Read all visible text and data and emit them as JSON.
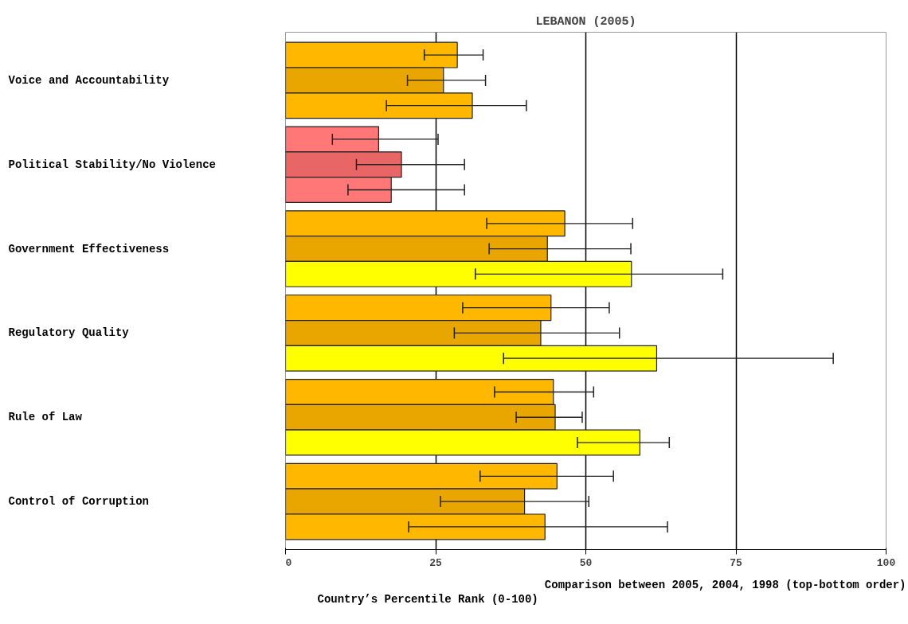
{
  "chart_data": {
    "type": "bar",
    "orientation": "horizontal",
    "title": "LEBANON (2005)",
    "xlabel": "Country’s Percentile Rank (0-100)",
    "annotations": [
      "Comparison between 2005, 2004, 1998 (top-bottom order)"
    ],
    "categories": [
      "Voice and Accountability",
      "Political Stability/No Violence",
      "Government Effectiveness",
      "Regulatory Quality",
      "Rule of Law",
      "Control of Corruption"
    ],
    "series": [
      {
        "colors": [
          "#ffb700",
          "#ff7777",
          "#ffb700",
          "#ffb700",
          "#ffb700",
          "#ffb700"
        ],
        "values": [
          28.6,
          15.5,
          46.5,
          44.2,
          44.6,
          45.2
        ],
        "errors": [
          [
            23.1,
            32.9
          ],
          [
            7.8,
            25.4
          ],
          [
            33.5,
            57.8
          ],
          [
            29.5,
            53.9
          ],
          [
            34.8,
            51.3
          ],
          [
            32.4,
            54.6
          ]
        ]
      },
      {
        "colors": [
          "#eaa600",
          "#e86666",
          "#eaa600",
          "#eaa600",
          "#eaa600",
          "#eaa600"
        ],
        "values": [
          26.3,
          19.3,
          43.6,
          42.5,
          44.9,
          39.8
        ],
        "errors": [
          [
            20.3,
            33.3
          ],
          [
            11.8,
            29.8
          ],
          [
            33.9,
            57.5
          ],
          [
            28.1,
            55.6
          ],
          [
            38.4,
            49.4
          ],
          [
            25.8,
            50.5
          ]
        ]
      },
      {
        "colors": [
          "#ffb700",
          "#ff7777",
          "#ffff00",
          "#ffff00",
          "#ffff00",
          "#ffb700"
        ],
        "values": [
          31.1,
          17.6,
          57.6,
          61.8,
          59.0,
          43.2
        ],
        "errors": [
          [
            16.8,
            40.1
          ],
          [
            10.4,
            29.8
          ],
          [
            31.6,
            72.8
          ],
          [
            36.3,
            91.2
          ],
          [
            48.6,
            63.9
          ],
          [
            20.5,
            63.6
          ]
        ]
      }
    ],
    "xlim": [
      0,
      100
    ],
    "xticks": [
      0,
      25,
      50,
      75,
      100
    ],
    "grid": "x"
  }
}
